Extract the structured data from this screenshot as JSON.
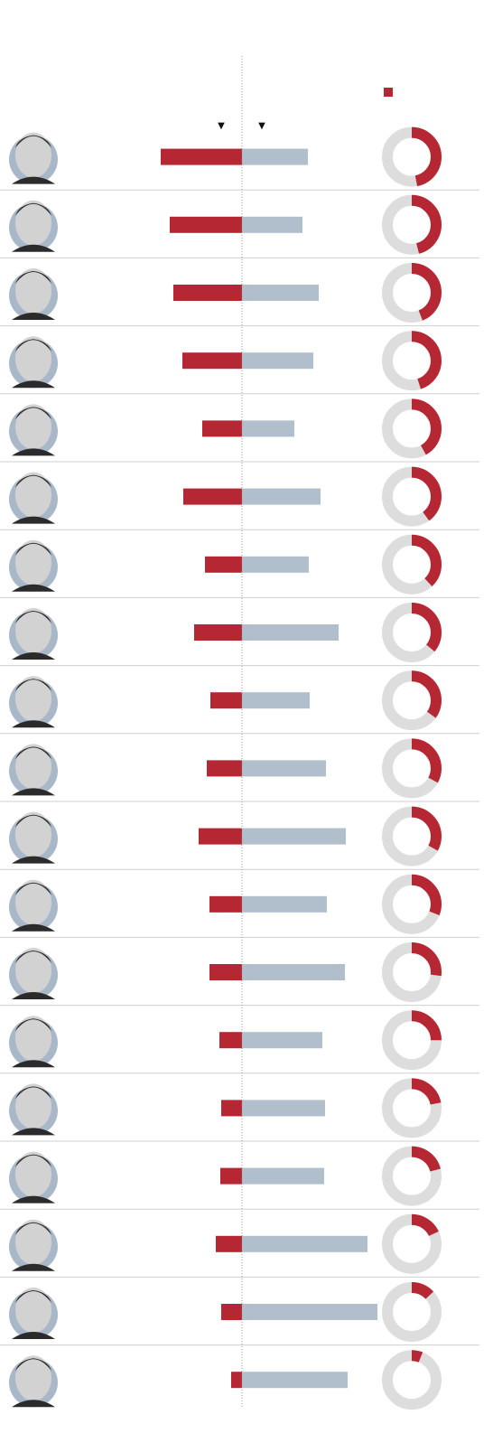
{
  "chart_data": {
    "type": "bar",
    "title": "",
    "legend": {
      "position": "top-right",
      "left_marker": "▼",
      "right_marker": "▼"
    },
    "colors": {
      "left": "#b52833",
      "right": "#b1becc",
      "ring_background": "#dddddd",
      "ring_share": "#b52833",
      "divider": "#cfcfcf",
      "axis": "#999999",
      "avatar_background": "#a9b8c8",
      "avatar_face": "#d2d2d2",
      "avatar_dark": "#2b2b2b"
    },
    "rows": [
      {
        "left": 90,
        "right": 73,
        "share": 0.47
      },
      {
        "left": 80,
        "right": 67,
        "share": 0.46
      },
      {
        "left": 76,
        "right": 85,
        "share": 0.44
      },
      {
        "left": 66,
        "right": 79,
        "share": 0.45
      },
      {
        "left": 44,
        "right": 58,
        "share": 0.42
      },
      {
        "left": 65,
        "right": 87,
        "share": 0.4
      },
      {
        "left": 41,
        "right": 74,
        "share": 0.38
      },
      {
        "left": 53,
        "right": 107,
        "share": 0.36
      },
      {
        "left": 35,
        "right": 75,
        "share": 0.35
      },
      {
        "left": 39,
        "right": 93,
        "share": 0.33
      },
      {
        "left": 48,
        "right": 115,
        "share": 0.33
      },
      {
        "left": 36,
        "right": 94,
        "share": 0.31
      },
      {
        "left": 36,
        "right": 114,
        "share": 0.27
      },
      {
        "left": 25,
        "right": 89,
        "share": 0.25
      },
      {
        "left": 23,
        "right": 92,
        "share": 0.22
      },
      {
        "left": 24,
        "right": 91,
        "share": 0.21
      },
      {
        "left": 29,
        "right": 139,
        "share": 0.18
      },
      {
        "left": 23,
        "right": 150,
        "share": 0.13
      },
      {
        "left": 12,
        "right": 117,
        "share": 0.06
      }
    ]
  }
}
